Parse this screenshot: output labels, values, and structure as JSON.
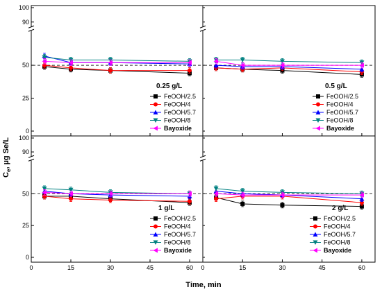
{
  "figure": {
    "ylabel_main": "C",
    "ylabel_sub": "e",
    "ylabel_rest": ", µg Se/L",
    "xlabel": "Time, min"
  },
  "chart_data": [
    {
      "type": "line",
      "title": "",
      "panel_label": "0.25 g/L",
      "x": [
        5,
        15,
        30,
        60
      ],
      "xlim": [
        0,
        65
      ],
      "ylim": [
        0,
        100
      ],
      "yticks": [
        0,
        25,
        50,
        90,
        100
      ],
      "axis_break": [
        75,
        88
      ],
      "reference_line": 50,
      "legend_placement": "lower-right",
      "series": [
        {
          "name": "FeOOH/2.5",
          "values": [
            49,
            47,
            46,
            44
          ],
          "color": "#000000",
          "marker": "square"
        },
        {
          "name": "FeOOH/4",
          "values": [
            50,
            48,
            46,
            46
          ],
          "color": "#ff0000",
          "marker": "circle"
        },
        {
          "name": "FeOOH/5.7",
          "values": [
            57,
            52,
            52,
            51
          ],
          "color": "#0000ff",
          "marker": "triangle-up"
        },
        {
          "name": "FeOOH/8",
          "values": [
            56,
            54,
            54,
            53
          ],
          "color": "#008080",
          "marker": "triangle-down"
        },
        {
          "name": "Bayoxide",
          "values": [
            53,
            52,
            52,
            52
          ],
          "color": "#ff00ff",
          "marker": "triangle-left"
        }
      ]
    },
    {
      "type": "line",
      "title": "",
      "panel_label": "0.5 g/L",
      "x": [
        5,
        15,
        30,
        60
      ],
      "xlim": [
        0,
        65
      ],
      "ylim": [
        0,
        100
      ],
      "yticks": [
        0,
        25,
        50,
        90,
        100
      ],
      "axis_break": [
        75,
        88
      ],
      "reference_line": 50,
      "legend_placement": "lower-right",
      "series": [
        {
          "name": "FeOOH/2.5",
          "values": [
            48,
            47,
            46,
            43
          ],
          "color": "#000000",
          "marker": "square"
        },
        {
          "name": "FeOOH/4",
          "values": [
            48,
            47,
            48,
            45
          ],
          "color": "#ff0000",
          "marker": "circle"
        },
        {
          "name": "FeOOH/5.7",
          "values": [
            50,
            49,
            49,
            47
          ],
          "color": "#0000ff",
          "marker": "triangle-up"
        },
        {
          "name": "FeOOH/8",
          "values": [
            54,
            54,
            53,
            52
          ],
          "color": "#008080",
          "marker": "triangle-down"
        },
        {
          "name": "Bayoxide",
          "values": [
            53,
            50,
            50,
            50
          ],
          "color": "#ff00ff",
          "marker": "triangle-left"
        }
      ]
    },
    {
      "type": "line",
      "title": "",
      "panel_label": "1 g/L",
      "x": [
        5,
        15,
        30,
        60
      ],
      "xlim": [
        0,
        65
      ],
      "ylim": [
        0,
        100
      ],
      "yticks": [
        0,
        25,
        50,
        90,
        100
      ],
      "axis_break": [
        75,
        88
      ],
      "reference_line": 50,
      "legend_placement": "lower-right",
      "series": [
        {
          "name": "FeOOH/2.5",
          "values": [
            48,
            48,
            46,
            43
          ],
          "color": "#000000",
          "marker": "square"
        },
        {
          "name": "FeOOH/4",
          "values": [
            48,
            46,
            45,
            44
          ],
          "color": "#ff0000",
          "marker": "circle"
        },
        {
          "name": "FeOOH/5.7",
          "values": [
            52,
            50,
            49,
            48
          ],
          "color": "#0000ff",
          "marker": "triangle-up"
        },
        {
          "name": "FeOOH/8",
          "values": [
            54,
            53,
            51,
            50
          ],
          "color": "#008080",
          "marker": "triangle-down"
        },
        {
          "name": "Bayoxide",
          "values": [
            51,
            50,
            50,
            50
          ],
          "color": "#ff00ff",
          "marker": "triangle-left"
        }
      ]
    },
    {
      "type": "line",
      "title": "",
      "panel_label": "2 g/L",
      "x": [
        5,
        15,
        30,
        60
      ],
      "xlim": [
        0,
        65
      ],
      "ylim": [
        0,
        100
      ],
      "yticks": [
        0,
        25,
        50,
        90,
        100
      ],
      "axis_break": [
        75,
        88
      ],
      "reference_line": 50,
      "legend_placement": "lower-right",
      "series": [
        {
          "name": "FeOOH/2.5",
          "values": [
            47,
            42,
            41,
            40
          ],
          "color": "#000000",
          "marker": "square"
        },
        {
          "name": "FeOOH/4",
          "values": [
            46,
            48,
            48,
            43
          ],
          "color": "#ff0000",
          "marker": "circle"
        },
        {
          "name": "FeOOH/5.7",
          "values": [
            52,
            50,
            49,
            46
          ],
          "color": "#0000ff",
          "marker": "triangle-up"
        },
        {
          "name": "FeOOH/8",
          "values": [
            54,
            52,
            51,
            50
          ],
          "color": "#008080",
          "marker": "triangle-down"
        },
        {
          "name": "Bayoxide",
          "values": [
            50,
            49,
            49,
            49
          ],
          "color": "#ff00ff",
          "marker": "triangle-left"
        }
      ]
    }
  ]
}
